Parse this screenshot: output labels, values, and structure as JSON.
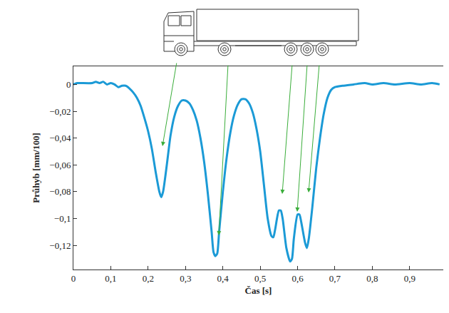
{
  "chart_data": {
    "type": "line",
    "x_label": "Čas [s]",
    "y_label": "Průhyb [mm/100]",
    "color": "#1b9ad6",
    "grid": false,
    "x": [
      0,
      0.01,
      0.02,
      0.05,
      0.06,
      0.07,
      0.08,
      0.09,
      0.1,
      0.11,
      0.12,
      0.13,
      0.14,
      0.15,
      0.16,
      0.17,
      0.18,
      0.19,
      0.2,
      0.21,
      0.22,
      0.23,
      0.235,
      0.24,
      0.25,
      0.26,
      0.27,
      0.28,
      0.29,
      0.3,
      0.31,
      0.32,
      0.33,
      0.34,
      0.35,
      0.36,
      0.37,
      0.375,
      0.38,
      0.385,
      0.39,
      0.4,
      0.41,
      0.42,
      0.43,
      0.44,
      0.45,
      0.46,
      0.47,
      0.48,
      0.49,
      0.5,
      0.51,
      0.52,
      0.53,
      0.535,
      0.54,
      0.55,
      0.555,
      0.56,
      0.57,
      0.58,
      0.585,
      0.59,
      0.6,
      0.605,
      0.61,
      0.62,
      0.625,
      0.63,
      0.64,
      0.65,
      0.66,
      0.67,
      0.68,
      0.69,
      0.7,
      0.72,
      0.75,
      0.78,
      0.8,
      0.83,
      0.86,
      0.9,
      0.93,
      0.96,
      0.98
    ],
    "values": [
      0,
      0.001,
      0.001,
      0.001,
      0.002,
      0.001,
      0.002,
      0,
      0.001,
      0,
      -0.002,
      -0.001,
      -0.001,
      -0.003,
      -0.006,
      -0.01,
      -0.016,
      -0.025,
      -0.035,
      -0.048,
      -0.065,
      -0.08,
      -0.084,
      -0.08,
      -0.06,
      -0.038,
      -0.024,
      -0.016,
      -0.012,
      -0.012,
      -0.014,
      -0.019,
      -0.027,
      -0.04,
      -0.058,
      -0.082,
      -0.11,
      -0.125,
      -0.128,
      -0.126,
      -0.11,
      -0.08,
      -0.055,
      -0.036,
      -0.023,
      -0.015,
      -0.011,
      -0.011,
      -0.014,
      -0.021,
      -0.033,
      -0.05,
      -0.075,
      -0.1,
      -0.113,
      -0.114,
      -0.108,
      -0.094,
      -0.094,
      -0.1,
      -0.122,
      -0.132,
      -0.13,
      -0.115,
      -0.097,
      -0.097,
      -0.103,
      -0.118,
      -0.122,
      -0.115,
      -0.09,
      -0.062,
      -0.04,
      -0.022,
      -0.01,
      -0.004,
      -0.002,
      -0.001,
      0,
      0.001,
      0,
      0.001,
      0,
      0.001,
      0,
      0.001,
      0
    ],
    "xlim": [
      0,
      0.99
    ],
    "ylim": [
      -0.138,
      0.0135
    ],
    "xticks": [
      0,
      {
        "value": 0.1,
        "label": "0,1"
      },
      {
        "value": 0.2,
        "label": "0,2"
      },
      {
        "value": 0.3,
        "label": "0,3"
      },
      {
        "value": 0.4,
        "label": "0,4"
      },
      {
        "value": 0.5,
        "label": "0,5"
      },
      {
        "value": 0.6,
        "label": "0,6"
      },
      {
        "value": 0.7,
        "label": "0,7"
      },
      {
        "value": 0.8,
        "label": "0,8"
      },
      {
        "value": 0.9,
        "label": "0,9"
      }
    ],
    "yticks": [
      0,
      {
        "value": -0.02,
        "label": "−0,02"
      },
      {
        "value": -0.04,
        "label": "−0,04"
      },
      {
        "value": -0.06,
        "label": "−0,06"
      },
      {
        "value": -0.08,
        "label": "−0,08"
      },
      {
        "value": -0.1,
        "label": "−0,1"
      },
      {
        "value": -0.12,
        "label": "−0,12"
      }
    ]
  }
}
